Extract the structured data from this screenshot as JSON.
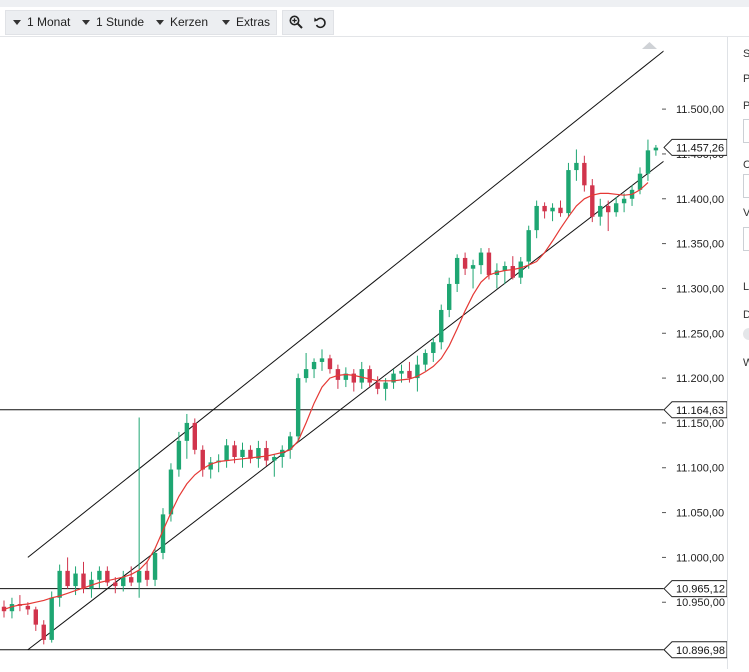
{
  "toolbar": {
    "period_label": "1 Monat",
    "interval_label": "1 Stunde",
    "charttype_label": "Kerzen",
    "extras_label": "Extras",
    "zoom_icon": "zoom-in-icon",
    "reset_icon": "undo-icon"
  },
  "side_panel_letters": [
    "S",
    "P",
    "P",
    "C",
    "V",
    "L",
    "D",
    "W"
  ],
  "colors": {
    "up": "#1ea672",
    "down": "#d1344c",
    "ma": "#e53935",
    "lines": "#111111",
    "badge_border": "#222222"
  },
  "chart_data": {
    "type": "candlestick",
    "title": "",
    "xlabel": "",
    "ylabel": "",
    "ylim": [
      10880,
      11570
    ],
    "yticks": [
      11500,
      11450,
      11400,
      11350,
      11300,
      11250,
      11200,
      11150,
      11100,
      11050,
      11000,
      10950
    ],
    "ytick_labels": [
      "11.500,00",
      "11.450,00",
      "11.400,00",
      "11.350,00",
      "11.300,00",
      "11.250,00",
      "11.200,00",
      "11.150,00",
      "11.100,00",
      "11.050,00",
      "11.000,00",
      "10.950,00"
    ],
    "last_price": {
      "value": 11457.26,
      "label": "11.457,26"
    },
    "horizontal_levels": [
      {
        "value": 11164.63,
        "label": "11.164,63"
      },
      {
        "value": 10965.12,
        "label": "10.965,12"
      },
      {
        "value": 10896.98,
        "label": "10.896,98"
      }
    ],
    "channel": {
      "upper": {
        "from": [
          3,
          11000
        ],
        "to": [
          83,
          11565
        ]
      },
      "lower": {
        "from": [
          3,
          10897
        ],
        "to": [
          83,
          11442
        ]
      }
    },
    "moving_average": [
      10942,
      10945,
      10947,
      10948,
      10950,
      10952,
      10955,
      10957,
      10960,
      10963,
      10966,
      10969,
      10972,
      10974,
      10976,
      10978,
      10981,
      10986,
      10995,
      11010,
      11030,
      11050,
      11068,
      11082,
      11092,
      11099,
      11104,
      11107,
      11108,
      11109,
      11110,
      11111,
      11112,
      11113,
      11115,
      11117,
      11120,
      11130,
      11150,
      11172,
      11190,
      11200,
      11203,
      11204,
      11203,
      11201,
      11199,
      11197,
      11197,
      11197,
      11198,
      11199,
      11202,
      11207,
      11213,
      11222,
      11236,
      11255,
      11275,
      11293,
      11307,
      11315,
      11318,
      11320,
      11321,
      11323,
      11326,
      11330,
      11340,
      11353,
      11367,
      11380,
      11392,
      11400,
      11404,
      11406,
      11406,
      11405,
      11404,
      11405,
      11410,
      11418
    ],
    "candles": [
      [
        10945,
        10952,
        10933,
        10940
      ],
      [
        10940,
        10955,
        10932,
        10948
      ],
      [
        10948,
        10958,
        10940,
        10946
      ],
      [
        10946,
        10950,
        10936,
        10942
      ],
      [
        10942,
        10945,
        10918,
        10925
      ],
      [
        10925,
        10930,
        10903,
        10908
      ],
      [
        10908,
        10962,
        10905,
        10955
      ],
      [
        10955,
        10992,
        10945,
        10985
      ],
      [
        10985,
        11000,
        10965,
        10968
      ],
      [
        10968,
        10990,
        10958,
        10982
      ],
      [
        10982,
        10995,
        10960,
        10965
      ],
      [
        10965,
        10984,
        10955,
        10975
      ],
      [
        10975,
        10990,
        10966,
        10985
      ],
      [
        10985,
        10990,
        10968,
        10972
      ],
      [
        10972,
        10978,
        10960,
        10968
      ],
      [
        10968,
        10985,
        10962,
        10978
      ],
      [
        10978,
        10990,
        10968,
        10972
      ],
      [
        10972,
        11156,
        10955,
        10985
      ],
      [
        10985,
        10996,
        10968,
        10975
      ],
      [
        10975,
        11010,
        10968,
        11005
      ],
      [
        11005,
        11055,
        10998,
        11048
      ],
      [
        11048,
        11105,
        11040,
        11098
      ],
      [
        11098,
        11140,
        11090,
        11130
      ],
      [
        11130,
        11160,
        11110,
        11150
      ],
      [
        11150,
        11155,
        11115,
        11120
      ],
      [
        11120,
        11125,
        11090,
        11098
      ],
      [
        11098,
        11112,
        11088,
        11106
      ],
      [
        11106,
        11115,
        11095,
        11108
      ],
      [
        11108,
        11132,
        11100,
        11125
      ],
      [
        11125,
        11130,
        11105,
        11112
      ],
      [
        11112,
        11128,
        11100,
        11120
      ],
      [
        11120,
        11125,
        11105,
        11110
      ],
      [
        11110,
        11130,
        11100,
        11122
      ],
      [
        11122,
        11130,
        11102,
        11108
      ],
      [
        11108,
        11115,
        11090,
        11112
      ],
      [
        11112,
        11125,
        11100,
        11120
      ],
      [
        11120,
        11140,
        11110,
        11135
      ],
      [
        11135,
        11205,
        11128,
        11200
      ],
      [
        11200,
        11228,
        11195,
        11210
      ],
      [
        11210,
        11222,
        11200,
        11218
      ],
      [
        11218,
        11232,
        11208,
        11222
      ],
      [
        11222,
        11226,
        11205,
        11210
      ],
      [
        11210,
        11215,
        11188,
        11198
      ],
      [
        11198,
        11212,
        11190,
        11205
      ],
      [
        11205,
        11210,
        11185,
        11195
      ],
      [
        11195,
        11218,
        11188,
        11210
      ],
      [
        11210,
        11214,
        11190,
        11195
      ],
      [
        11195,
        11202,
        11182,
        11188
      ],
      [
        11188,
        11200,
        11175,
        11195
      ],
      [
        11195,
        11210,
        11188,
        11205
      ],
      [
        11205,
        11215,
        11195,
        11208
      ],
      [
        11208,
        11218,
        11195,
        11200
      ],
      [
        11200,
        11225,
        11185,
        11215
      ],
      [
        11215,
        11232,
        11208,
        11228
      ],
      [
        11228,
        11245,
        11218,
        11240
      ],
      [
        11240,
        11282,
        11232,
        11276
      ],
      [
        11276,
        11312,
        11268,
        11305
      ],
      [
        11305,
        11338,
        11296,
        11334
      ],
      [
        11334,
        11340,
        11315,
        11322
      ],
      [
        11322,
        11332,
        11300,
        11326
      ],
      [
        11326,
        11345,
        11316,
        11340
      ],
      [
        11340,
        11345,
        11310,
        11315
      ],
      [
        11315,
        11328,
        11300,
        11320
      ],
      [
        11320,
        11330,
        11305,
        11325
      ],
      [
        11325,
        11336,
        11310,
        11312
      ],
      [
        11312,
        11335,
        11305,
        11330
      ],
      [
        11330,
        11370,
        11322,
        11365
      ],
      [
        11365,
        11398,
        11356,
        11392
      ],
      [
        11392,
        11396,
        11378,
        11386
      ],
      [
        11386,
        11395,
        11375,
        11390
      ],
      [
        11390,
        11398,
        11380,
        11384
      ],
      [
        11384,
        11440,
        11380,
        11432
      ],
      [
        11432,
        11455,
        11420,
        11440
      ],
      [
        11440,
        11448,
        11408,
        11415
      ],
      [
        11415,
        11422,
        11374,
        11380
      ],
      [
        11380,
        11400,
        11370,
        11392
      ],
      [
        11392,
        11398,
        11364,
        11385
      ],
      [
        11385,
        11402,
        11380,
        11395
      ],
      [
        11395,
        11406,
        11385,
        11400
      ],
      [
        11400,
        11415,
        11392,
        11410
      ],
      [
        11410,
        11435,
        11405,
        11428
      ],
      [
        11428,
        11466,
        11420,
        11454
      ],
      [
        11454,
        11460,
        11448,
        11457
      ]
    ]
  }
}
